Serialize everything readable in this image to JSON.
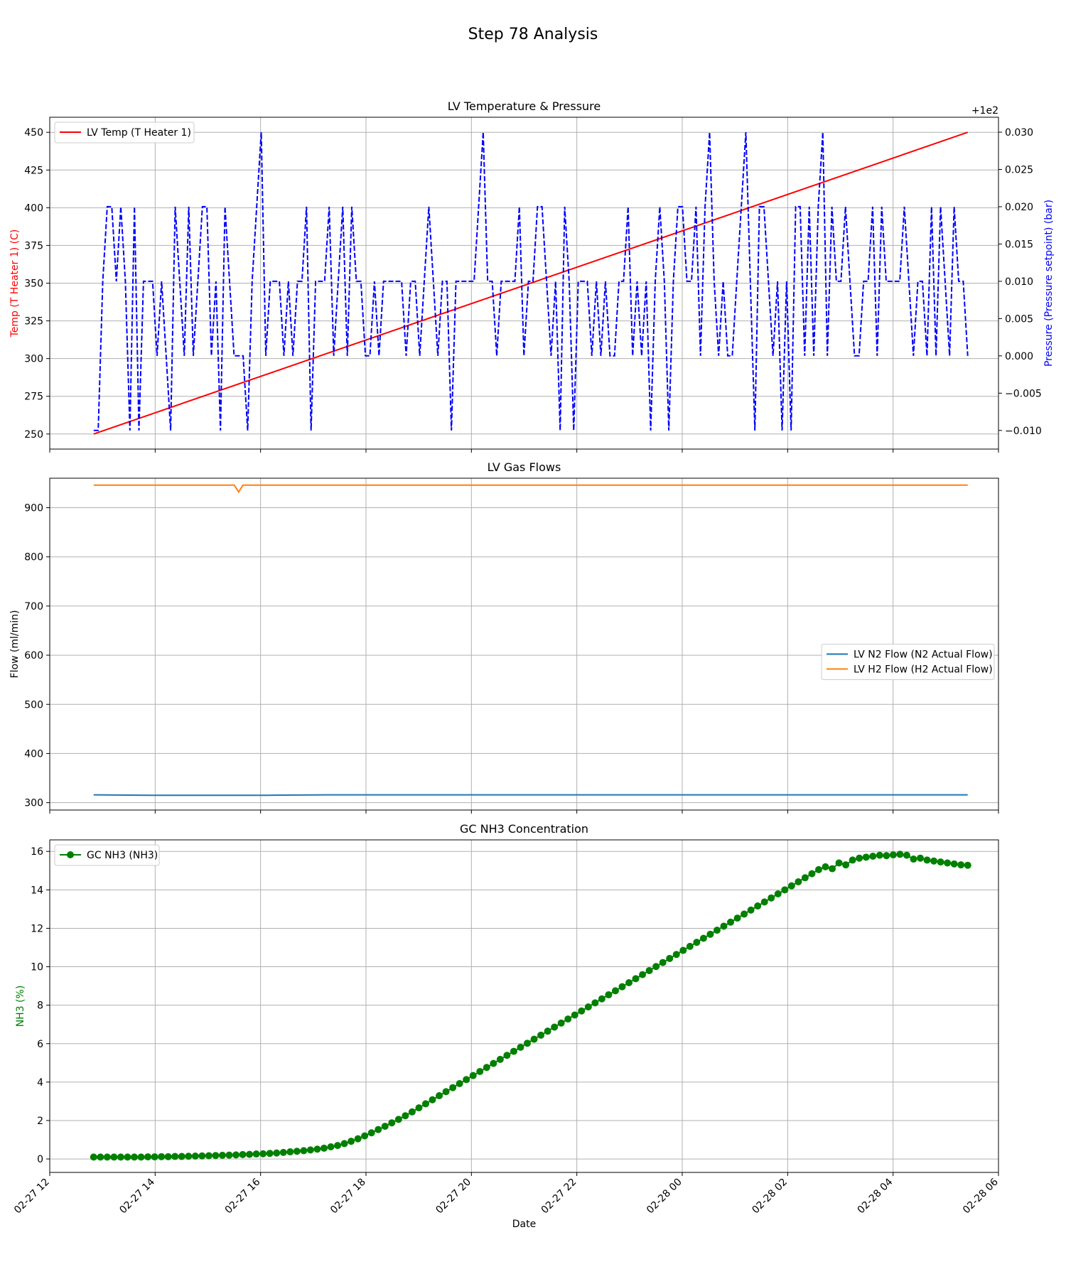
{
  "figure": {
    "title": "Step 78 Analysis"
  },
  "chart_data": [
    {
      "type": "line",
      "title": "LV Temperature & Pressure",
      "xlabel": "",
      "ylabel": "Temp (T Heater 1) (C)",
      "ylabel_color": "#ff0000",
      "y2label": "Pressure (Pressure setpoint) (bar)",
      "y2label_color": "#0000ff",
      "y2_offset_text": "+1e2",
      "x_type": "datetime",
      "xlim": [
        "2027-02-27 12:00",
        "2027-02-28 06:00"
      ],
      "ylim": [
        240,
        460
      ],
      "y_ticks": [
        "250",
        "275",
        "300",
        "325",
        "350",
        "375",
        "400",
        "425",
        "450"
      ],
      "y2lim": [
        -0.0125,
        0.032
      ],
      "y2_ticks": [
        "−0.010",
        "−0.005",
        "0.000",
        "0.005",
        "0.010",
        "0.015",
        "0.020",
        "0.025",
        "0.030"
      ],
      "grid": true,
      "legend": {
        "placement": "upper left",
        "entries": [
          "LV Temp (T Heater 1)"
        ]
      },
      "series": [
        {
          "name": "LV Temp (T Heater 1)",
          "color": "#ff0000",
          "style": "solid",
          "axis": "left",
          "x": [
            "2027-02-27 12:50",
            "2027-02-28 05:25"
          ],
          "values": [
            250,
            450
          ]
        },
        {
          "color": "#0000ff",
          "style": "dashed",
          "axis": "right",
          "x_start": "2027-02-27 12:50",
          "x_end": "2027-02-28 05:25",
          "values_note_unit": "bar offset from 100",
          "values": [
            -0.01,
            -0.01,
            0.01,
            0.02,
            0.02,
            0.01,
            0.02,
            0.01,
            -0.01,
            0.02,
            -0.01,
            0.01,
            0.01,
            0.01,
            0.0,
            0.01,
            0.0,
            -0.01,
            0.02,
            0.01,
            0.0,
            0.02,
            0.0,
            0.01,
            0.02,
            0.02,
            0.0,
            0.01,
            -0.01,
            0.02,
            0.01,
            0.0,
            0.0,
            0.0,
            -0.01,
            0.01,
            0.02,
            0.03,
            0.0,
            0.01,
            0.01,
            0.01,
            0.0,
            0.01,
            0.0,
            0.01,
            0.01,
            0.02,
            -0.01,
            0.01,
            0.01,
            0.01,
            0.02,
            0.0,
            0.01,
            0.02,
            0.0,
            0.02,
            0.01,
            0.01,
            0.0,
            0.0,
            0.01,
            0.0,
            0.01,
            0.01,
            0.01,
            0.01,
            0.01,
            0.0,
            0.01,
            0.01,
            0.0,
            0.01,
            0.02,
            0.01,
            0.0,
            0.01,
            0.01,
            -0.01,
            0.01,
            0.01,
            0.01,
            0.01,
            0.01,
            0.02,
            0.03,
            0.01,
            0.01,
            0.0,
            0.01,
            0.01,
            0.01,
            0.01,
            0.02,
            0.0,
            0.01,
            0.01,
            0.02,
            0.02,
            0.01,
            0.0,
            0.01,
            -0.01,
            0.02,
            0.01,
            -0.01,
            0.01,
            0.01,
            0.01,
            0.0,
            0.01,
            0.0,
            0.01,
            0.0,
            0.0,
            0.01,
            0.01,
            0.02,
            0.0,
            0.01,
            0.0,
            0.01,
            -0.01,
            0.01,
            0.02,
            0.01,
            -0.01,
            0.01,
            0.02,
            0.02,
            0.01,
            0.01,
            0.02,
            0.0,
            0.02,
            0.03,
            0.01,
            0.0,
            0.01,
            0.0,
            0.0,
            0.01,
            0.02,
            0.03,
            0.01,
            -0.01,
            0.02,
            0.02,
            0.01,
            0.0,
            0.01,
            -0.01,
            0.01,
            -0.01,
            0.02,
            0.02,
            0.0,
            0.02,
            0.0,
            0.02,
            0.03,
            0.0,
            0.02,
            0.01,
            0.01,
            0.02,
            0.01,
            0.0,
            0.0,
            0.01,
            0.01,
            0.02,
            0.0,
            0.02,
            0.01,
            0.01,
            0.01,
            0.01,
            0.02,
            0.01,
            0.0,
            0.01,
            0.01,
            0.0,
            0.02,
            0.0,
            0.02,
            0.01,
            0.0,
            0.02,
            0.01,
            0.01,
            0.0
          ]
        }
      ]
    },
    {
      "type": "line",
      "title": "LV Gas Flows",
      "xlabel": "",
      "ylabel": "Flow (ml/min)",
      "x_type": "datetime",
      "xlim": [
        "2027-02-27 12:00",
        "2027-02-28 06:00"
      ],
      "ylim": [
        285,
        960
      ],
      "y_ticks": [
        "300",
        "400",
        "500",
        "600",
        "700",
        "800",
        "900"
      ],
      "grid": true,
      "legend": {
        "placement": "center right",
        "entries": [
          "LV N2 Flow (N2 Actual Flow)",
          "LV H2 Flow (H2 Actual Flow)"
        ]
      },
      "series": [
        {
          "name": "LV N2 Flow (N2 Actual Flow)",
          "color": "#1f77b4",
          "x_start": "2027-02-27 12:50",
          "x_end": "2027-02-28 05:25",
          "values": [
            316,
            315,
            315,
            315,
            316,
            316,
            316,
            316,
            316,
            316,
            316,
            316,
            316,
            316,
            316,
            316
          ]
        },
        {
          "name": "LV H2 Flow (H2 Actual Flow)",
          "color": "#ff7f0e",
          "x": [
            "2027-02-27 12:50",
            "2027-02-27 15:30",
            "2027-02-27 15:35",
            "2027-02-27 15:40",
            "2027-02-28 05:25"
          ],
          "values": [
            946,
            946,
            932,
            946,
            946
          ]
        }
      ]
    },
    {
      "type": "line",
      "title": "GC NH3 Concentration",
      "xlabel": "Date",
      "ylabel": "NH3 (%)",
      "ylabel_color": "#008000",
      "x_type": "datetime",
      "xlim": [
        "2027-02-27 12:00",
        "2027-02-28 06:00"
      ],
      "x_ticks": [
        "02-27 12",
        "02-27 14",
        "02-27 16",
        "02-27 18",
        "02-27 20",
        "02-27 22",
        "02-28 00",
        "02-28 02",
        "02-28 04",
        "02-28 06"
      ],
      "ylim": [
        -0.7,
        16.6
      ],
      "y_ticks": [
        "0",
        "2",
        "4",
        "6",
        "8",
        "10",
        "12",
        "14",
        "16"
      ],
      "grid": true,
      "legend": {
        "placement": "upper left",
        "entries": [
          "GC NH3 (NH3)"
        ]
      },
      "series": [
        {
          "name": "GC NH3 (NH3)",
          "color": "#008000",
          "marker": "circle",
          "x_start": "2027-02-27 12:50",
          "x_end": "2027-02-28 05:25",
          "values": [
            0.1,
            0.1,
            0.1,
            0.1,
            0.1,
            0.1,
            0.1,
            0.1,
            0.11,
            0.11,
            0.12,
            0.12,
            0.13,
            0.13,
            0.14,
            0.15,
            0.16,
            0.17,
            0.18,
            0.19,
            0.2,
            0.21,
            0.23,
            0.24,
            0.26,
            0.27,
            0.29,
            0.31,
            0.34,
            0.37,
            0.4,
            0.43,
            0.47,
            0.51,
            0.56,
            0.63,
            0.7,
            0.8,
            0.92,
            1.05,
            1.2,
            1.36,
            1.53,
            1.7,
            1.88,
            2.06,
            2.25,
            2.45,
            2.66,
            2.87,
            3.08,
            3.29,
            3.5,
            3.71,
            3.92,
            4.13,
            4.34,
            4.55,
            4.76,
            4.97,
            5.18,
            5.39,
            5.6,
            5.81,
            6.02,
            6.23,
            6.44,
            6.65,
            6.86,
            7.07,
            7.28,
            7.49,
            7.7,
            7.91,
            8.12,
            8.33,
            8.54,
            8.75,
            8.96,
            9.17,
            9.38,
            9.59,
            9.8,
            10.01,
            10.22,
            10.43,
            10.64,
            10.85,
            11.06,
            11.27,
            11.48,
            11.69,
            11.9,
            12.11,
            12.32,
            12.53,
            12.74,
            12.95,
            13.16,
            13.37,
            13.58,
            13.79,
            14.0,
            14.21,
            14.42,
            14.63,
            14.84,
            15.05,
            15.2,
            15.1,
            15.4,
            15.3,
            15.55,
            15.65,
            15.7,
            15.75,
            15.8,
            15.78,
            15.82,
            15.85,
            15.8,
            15.6,
            15.65,
            15.55,
            15.5,
            15.45,
            15.4,
            15.35,
            15.3,
            15.28
          ]
        }
      ]
    }
  ]
}
